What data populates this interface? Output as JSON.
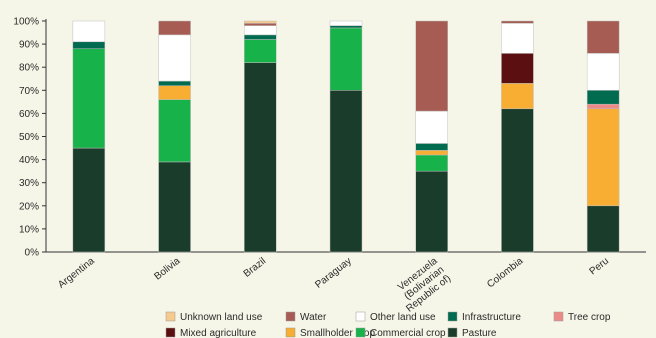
{
  "chart_data": {
    "type": "bar",
    "stacked": true,
    "percent": true,
    "title": "",
    "xlabel": "",
    "ylabel": "",
    "ylim": [
      0,
      100
    ],
    "yticks": [
      "0%",
      "10%",
      "20%",
      "30%",
      "40%",
      "50%",
      "60%",
      "70%",
      "80%",
      "90%",
      "100%"
    ],
    "grid": false,
    "legend_position": "bottom",
    "categories": [
      "Argentina",
      "Bolivia",
      "Brazil",
      "Paraguay",
      "Venezuela (Bolivarian Republic of)",
      "Colombia",
      "Peru"
    ],
    "series": [
      {
        "name": "Pasture",
        "color": "#1a3d2b",
        "values": [
          45,
          39,
          82,
          70,
          35,
          62,
          20
        ]
      },
      {
        "name": "Commercial crop",
        "color": "#17b24a",
        "values": [
          43,
          27,
          10,
          27,
          7,
          0,
          0
        ]
      },
      {
        "name": "Smallholder crop",
        "color": "#f8ad33",
        "values": [
          0,
          6,
          0,
          0,
          2,
          11,
          42
        ]
      },
      {
        "name": "Mixed agriculture",
        "color": "#5c0f10",
        "values": [
          0,
          0,
          0,
          0,
          0,
          13,
          0
        ]
      },
      {
        "name": "Tree crop",
        "color": "#ec8a87",
        "values": [
          0,
          0,
          0,
          0,
          0,
          0,
          2
        ]
      },
      {
        "name": "Infrastructure",
        "color": "#006b4e",
        "values": [
          3,
          2,
          2,
          1,
          3,
          0,
          6
        ]
      },
      {
        "name": "Other land use",
        "color": "#ffffff",
        "values": [
          9,
          20,
          4,
          2,
          14,
          13,
          16
        ]
      },
      {
        "name": "Water",
        "color": "#a65c52",
        "values": [
          0,
          6,
          1,
          0,
          39,
          1,
          14
        ]
      },
      {
        "name": "Unknown land use",
        "color": "#f6c98c",
        "values": [
          0,
          0,
          1,
          0,
          0,
          0,
          0
        ]
      }
    ],
    "legend_rows": [
      [
        "Unknown land use",
        "Water",
        "Other land use",
        "Infrastructure",
        "Tree crop"
      ],
      [
        "Mixed agriculture",
        "Smallholder crop",
        "Commercial crop",
        "Pasture"
      ]
    ]
  }
}
